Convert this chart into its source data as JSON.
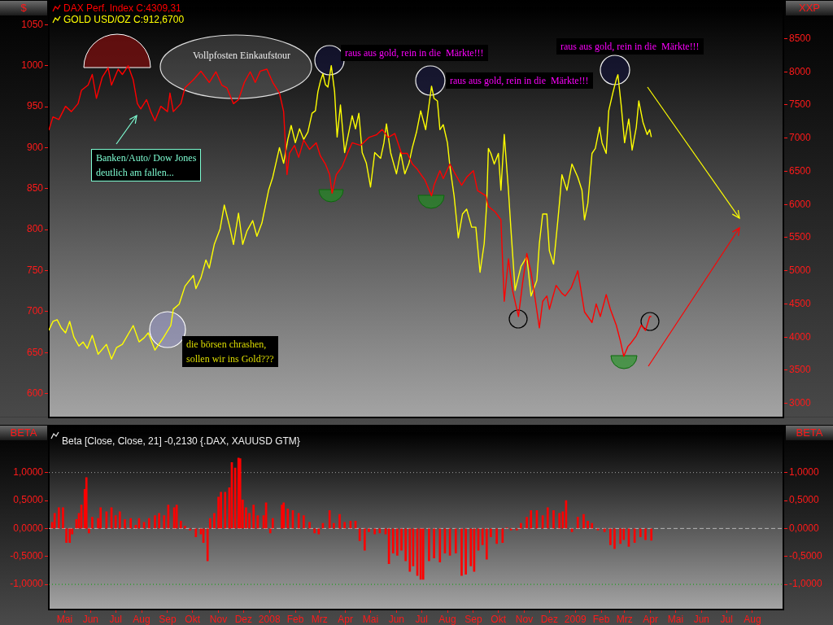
{
  "chart_data": [
    {
      "type": "line",
      "ylabel": "$",
      "y2label": "XXP",
      "legend": "top left",
      "tick_labels": "y",
      "xlim": [
        "2007-04-12",
        "2009-09-07"
      ],
      "ylim": [
        571,
        1071
      ],
      "yticks": [
        600,
        650,
        700,
        750,
        800,
        850,
        900,
        950,
        1000,
        1050
      ],
      "y2lim": [
        2790,
        8970
      ],
      "y2ticks": [
        3000,
        3500,
        4000,
        4500,
        5000,
        5500,
        6000,
        6500,
        7000,
        7500,
        8000,
        8500
      ],
      "series": [
        {
          "name": "DAX Perf. Index C:4309,31",
          "color": "#ff0000",
          "axis": "y2",
          "x": [
            "2007-04-12",
            "2007-04-17",
            "2007-04-24",
            "2007-05-02",
            "2007-05-09",
            "2007-05-17",
            "2007-05-21",
            "2007-05-29",
            "2007-06-03",
            "2007-06-08",
            "2007-06-15",
            "2007-06-22",
            "2007-06-26",
            "2007-07-04",
            "2007-07-09",
            "2007-07-16",
            "2007-07-22",
            "2007-07-27",
            "2007-07-31",
            "2007-08-07",
            "2007-08-12",
            "2007-08-17",
            "2007-08-24",
            "2007-09-01",
            "2007-09-04",
            "2007-09-08",
            "2007-09-17",
            "2007-09-22",
            "2007-10-02",
            "2007-10-11",
            "2007-10-21",
            "2007-10-29",
            "2007-11-05",
            "2007-11-11",
            "2007-11-19",
            "2007-11-25",
            "2007-12-02",
            "2007-12-09",
            "2007-12-15",
            "2007-12-21",
            "2007-12-29",
            "2008-01-05",
            "2008-01-13",
            "2008-01-18",
            "2008-01-22",
            "2008-01-25",
            "2008-01-31",
            "2008-02-05",
            "2008-02-11",
            "2008-02-18",
            "2008-02-26",
            "2008-03-02",
            "2008-03-08",
            "2008-03-13",
            "2008-03-16",
            "2008-03-21",
            "2008-03-28",
            "2008-04-04",
            "2008-04-09",
            "2008-04-19",
            "2008-04-29",
            "2008-05-08",
            "2008-05-15",
            "2008-05-22",
            "2008-05-30",
            "2008-06-07",
            "2008-06-14",
            "2008-06-20",
            "2008-06-26",
            "2008-07-05",
            "2008-07-13",
            "2008-07-16",
            "2008-07-23",
            "2008-07-27",
            "2008-08-04",
            "2008-08-09",
            "2008-08-18",
            "2008-08-24",
            "2008-09-01",
            "2008-09-06",
            "2008-09-16",
            "2008-09-19",
            "2008-09-27",
            "2008-10-04",
            "2008-10-08",
            "2008-10-13",
            "2008-10-18",
            "2008-10-25",
            "2008-10-30",
            "2008-11-04",
            "2008-11-09",
            "2008-11-13",
            "2008-11-19",
            "2008-11-23",
            "2008-11-28",
            "2008-12-01",
            "2008-12-09",
            "2008-12-16",
            "2008-12-20",
            "2008-12-27",
            "2009-01-04",
            "2009-01-12",
            "2009-01-21",
            "2009-01-26",
            "2009-01-31",
            "2009-02-07",
            "2009-02-12",
            "2009-02-19",
            "2009-02-24",
            "2009-02-28",
            "2009-03-05",
            "2009-03-08",
            "2009-03-15",
            "2009-03-21",
            "2009-03-26",
            "2009-03-31",
            "2009-04-02"
          ],
          "values": [
            7120,
            7320,
            7280,
            7480,
            7400,
            7520,
            7720,
            7800,
            7960,
            7600,
            7920,
            8060,
            7800,
            8040,
            7960,
            8090,
            7880,
            7520,
            7440,
            7580,
            7400,
            7260,
            7480,
            7400,
            7680,
            7400,
            7520,
            7760,
            7880,
            8010,
            7840,
            8000,
            7800,
            7760,
            7520,
            7580,
            7840,
            8000,
            7840,
            8010,
            8040,
            7840,
            7680,
            7400,
            6450,
            6770,
            6890,
            6710,
            6970,
            6830,
            6930,
            6730,
            6610,
            6450,
            6170,
            6450,
            6570,
            6790,
            6930,
            6890,
            7010,
            7050,
            7130,
            7010,
            7070,
            6770,
            6770,
            6610,
            6530,
            6370,
            6130,
            6290,
            6510,
            6390,
            6610,
            6490,
            6290,
            6410,
            6510,
            6210,
            6130,
            5970,
            5890,
            5770,
            4540,
            5180,
            4700,
            4310,
            4820,
            5260,
            4980,
            4660,
            4140,
            4540,
            4620,
            4420,
            4780,
            4660,
            4620,
            4740,
            5000,
            4380,
            4220,
            4500,
            4310,
            4640,
            4420,
            4180,
            3940,
            3710,
            3860,
            3900,
            4020,
            4180,
            4100,
            4310,
            4310
          ]
        },
        {
          "name": "GOLD USD/OZ C:912,6700",
          "color": "#ffff00",
          "x": [
            "2007-04-12",
            "2007-04-17",
            "2007-04-22",
            "2007-04-27",
            "2007-05-02",
            "2007-05-07",
            "2007-05-12",
            "2007-05-18",
            "2007-05-23",
            "2007-05-28",
            "2007-06-03",
            "2007-06-10",
            "2007-06-20",
            "2007-06-26",
            "2007-07-02",
            "2007-07-09",
            "2007-07-22",
            "2007-07-29",
            "2007-08-04",
            "2007-08-09",
            "2007-08-17",
            "2007-08-27",
            "2007-09-05",
            "2007-09-08",
            "2007-09-15",
            "2007-09-22",
            "2007-10-02",
            "2007-10-05",
            "2007-10-11",
            "2007-10-17",
            "2007-10-21",
            "2007-10-27",
            "2007-11-03",
            "2007-11-08",
            "2007-11-15",
            "2007-11-19",
            "2007-11-25",
            "2007-11-30",
            "2007-12-05",
            "2007-12-12",
            "2007-12-17",
            "2007-12-23",
            "2007-12-31",
            "2008-01-05",
            "2008-01-13",
            "2008-01-18",
            "2008-01-23",
            "2008-01-27",
            "2008-02-01",
            "2008-02-06",
            "2008-02-11",
            "2008-02-16",
            "2008-02-21",
            "2008-02-25",
            "2008-02-28",
            "2008-03-02",
            "2008-03-05",
            "2008-03-08",
            "2008-03-11",
            "2008-03-15",
            "2008-03-19",
            "2008-03-22",
            "2008-03-26",
            "2008-03-31",
            "2008-04-05",
            "2008-04-09",
            "2008-04-13",
            "2008-04-17",
            "2008-04-21",
            "2008-04-26",
            "2008-05-01",
            "2008-05-06",
            "2008-05-13",
            "2008-05-17",
            "2008-05-20",
            "2008-05-25",
            "2008-06-01",
            "2008-06-06",
            "2008-06-11",
            "2008-06-16",
            "2008-06-20",
            "2008-06-25",
            "2008-06-30",
            "2008-07-06",
            "2008-07-13",
            "2008-07-16",
            "2008-07-20",
            "2008-07-23",
            "2008-07-27",
            "2008-08-01",
            "2008-08-04",
            "2008-08-09",
            "2008-08-14",
            "2008-08-19",
            "2008-08-24",
            "2008-08-30",
            "2008-09-04",
            "2008-09-09",
            "2008-09-14",
            "2008-09-17",
            "2008-09-19",
            "2008-09-22",
            "2008-09-26",
            "2008-10-01",
            "2008-10-04",
            "2008-10-08",
            "2008-10-13",
            "2008-10-16",
            "2008-10-21",
            "2008-10-28",
            "2008-11-04",
            "2008-11-09",
            "2008-11-16",
            "2008-11-19",
            "2008-11-23",
            "2008-11-28",
            "2008-12-01",
            "2008-12-06",
            "2008-12-11",
            "2008-12-13",
            "2008-12-16",
            "2008-12-22",
            "2008-12-28",
            "2009-01-04",
            "2009-01-09",
            "2009-01-12",
            "2009-01-16",
            "2009-01-21",
            "2009-01-25",
            "2009-01-30",
            "2009-02-02",
            "2009-02-07",
            "2009-02-10",
            "2009-02-15",
            "2009-02-19",
            "2009-02-21",
            "2009-02-25",
            "2009-03-01",
            "2009-03-06",
            "2009-03-10",
            "2009-03-15",
            "2009-03-18",
            "2009-03-23",
            "2009-03-28",
            "2009-03-31",
            "2009-04-02"
          ],
          "values": [
            677,
            688,
            690,
            680,
            674,
            688,
            669,
            658,
            663,
            655,
            671,
            648,
            660,
            642,
            656,
            660,
            683,
            663,
            668,
            674,
            653,
            668,
            683,
            703,
            709,
            731,
            744,
            728,
            741,
            763,
            753,
            782,
            801,
            830,
            801,
            782,
            820,
            782,
            798,
            811,
            792,
            808,
            848,
            864,
            900,
            881,
            910,
            927,
            906,
            923,
            910,
            919,
            942,
            945,
            968,
            981,
            990,
            977,
            974,
            1000,
            968,
            913,
            952,
            894,
            919,
            939,
            923,
            942,
            894,
            881,
            852,
            894,
            887,
            906,
            929,
            894,
            868,
            894,
            868,
            881,
            900,
            919,
            945,
            922,
            975,
            960,
            957,
            922,
            928,
            906,
            877,
            841,
            790,
            819,
            825,
            803,
            803,
            748,
            783,
            832,
            899,
            893,
            880,
            893,
            848,
            916,
            848,
            800,
            726,
            755,
            767,
            719,
            738,
            783,
            819,
            819,
            774,
            758,
            810,
            832,
            867,
            848,
            880,
            864,
            848,
            812,
            832,
            893,
            899,
            925,
            906,
            893,
            945,
            967,
            983,
            989,
            951,
            906,
            935,
            897,
            925,
            957,
            931,
            916,
            922,
            913
          ]
        }
      ],
      "annotations": [
        "Vollpfosten Einkaufstour",
        "raus aus gold, rein in die  Märkte!!!",
        "raus aus gold, rein in die  Märkte!!!",
        "raus aus gold, rein in die  Märkte!!!",
        "Banken/Auto/ Dow Jones\ndeutlich am fallen...",
        "die börsen chrashen,\nsollen wir ins Gold???"
      ]
    },
    {
      "type": "bar",
      "title": "Beta [Close, Close, 21] -0,2130 {.DAX, XAUUSD GTM}",
      "ylabel": "BETA",
      "y2label": "BETA",
      "color": "#ff0000",
      "xlim": [
        "2007-04-12",
        "2009-09-07"
      ],
      "xticks": [
        {
          "value": "2007-05",
          "label": "Mai"
        },
        {
          "value": "2007-06",
          "label": "Jun"
        },
        {
          "value": "2007-07",
          "label": "Jul"
        },
        {
          "value": "2007-08",
          "label": "Aug"
        },
        {
          "value": "2007-09",
          "label": "Sep"
        },
        {
          "value": "2007-10",
          "label": "Okt"
        },
        {
          "value": "2007-11",
          "label": "Nov"
        },
        {
          "value": "2007-12",
          "label": "Dez"
        },
        {
          "value": "2008-01",
          "label": "2008"
        },
        {
          "value": "2008-02",
          "label": "Feb"
        },
        {
          "value": "2008-03",
          "label": "Mrz"
        },
        {
          "value": "2008-04",
          "label": "Apr"
        },
        {
          "value": "2008-05",
          "label": "Mai"
        },
        {
          "value": "2008-06",
          "label": "Jun"
        },
        {
          "value": "2008-07",
          "label": "Jul"
        },
        {
          "value": "2008-08",
          "label": "Aug"
        },
        {
          "value": "2008-09",
          "label": "Sep"
        },
        {
          "value": "2008-10",
          "label": "Okt"
        },
        {
          "value": "2008-11",
          "label": "Nov"
        },
        {
          "value": "2008-12",
          "label": "Dez"
        },
        {
          "value": "2009-01",
          "label": "2009"
        },
        {
          "value": "2009-02",
          "label": "Feb"
        },
        {
          "value": "2009-03",
          "label": "Mrz"
        },
        {
          "value": "2009-04",
          "label": "Apr"
        },
        {
          "value": "2009-05",
          "label": "Mai"
        },
        {
          "value": "2009-06",
          "label": "Jun"
        },
        {
          "value": "2009-07",
          "label": "Jul"
        },
        {
          "value": "2009-08",
          "label": "Aug"
        }
      ],
      "ylim": [
        -1.45,
        1.72
      ],
      "yticks": [
        {
          "value": -1,
          "label": "-1,0000"
        },
        {
          "value": -0.5,
          "label": "-0,5000"
        },
        {
          "value": 0,
          "label": "0,0000"
        },
        {
          "value": 0.5,
          "label": "0,5000"
        },
        {
          "value": 1,
          "label": "1,0000"
        }
      ],
      "y2lim": [
        -1.45,
        1.72
      ],
      "y2ticks": [
        {
          "value": -1,
          "label": "-1,0000"
        },
        {
          "value": -0.5,
          "label": "-0,5000"
        },
        {
          "value": 0,
          "label": "0,0000"
        },
        {
          "value": 0.5,
          "label": "0,5000"
        },
        {
          "value": 1,
          "label": "1,0000"
        }
      ],
      "ref_lines": [
        {
          "axis": "y",
          "value": 1,
          "color": "#a0a0a0",
          "line_style": "dotted"
        },
        {
          "axis": "y",
          "value": 0,
          "color": "#b4b4b4",
          "line_style": "dashed"
        },
        {
          "axis": "y",
          "value": -1,
          "color": "#00a000",
          "line_style": "dotted"
        }
      ],
      "x": [
        "2007-04-16",
        "2007-04-19",
        "2007-04-24",
        "2007-04-29",
        "2007-05-03",
        "2007-05-07",
        "2007-05-10",
        "2007-05-15",
        "2007-05-18",
        "2007-05-21",
        "2007-05-25",
        "2007-05-27",
        "2007-05-30",
        "2007-06-03",
        "2007-06-10",
        "2007-06-13",
        "2007-06-20",
        "2007-06-26",
        "2007-07-01",
        "2007-07-06",
        "2007-07-12",
        "2007-07-19",
        "2007-07-25",
        "2007-07-29",
        "2007-08-04",
        "2007-08-10",
        "2007-08-17",
        "2007-08-22",
        "2007-08-28",
        "2007-09-02",
        "2007-09-09",
        "2007-09-12",
        "2007-09-17",
        "2007-09-22",
        "2007-09-28",
        "2007-10-05",
        "2007-10-11",
        "2007-10-14",
        "2007-10-19",
        "2007-10-22",
        "2007-10-27",
        "2007-11-01",
        "2007-11-04",
        "2007-11-09",
        "2007-11-14",
        "2007-11-17",
        "2007-11-21",
        "2007-11-25",
        "2007-11-27",
        "2007-11-30",
        "2007-12-04",
        "2007-12-08",
        "2007-12-13",
        "2007-12-18",
        "2007-12-25",
        "2007-12-28",
        "2008-01-02",
        "2008-01-05",
        "2008-01-10",
        "2008-01-16",
        "2008-01-18",
        "2008-01-23",
        "2008-01-29",
        "2008-02-05",
        "2008-02-11",
        "2008-02-18",
        "2008-02-24",
        "2008-02-29",
        "2008-03-05",
        "2008-03-13",
        "2008-03-18",
        "2008-03-25",
        "2008-03-31",
        "2008-04-07",
        "2008-04-13",
        "2008-04-18",
        "2008-04-24",
        "2008-04-29",
        "2008-05-06",
        "2008-05-12",
        "2008-05-19",
        "2008-05-23",
        "2008-05-28",
        "2008-06-02",
        "2008-06-07",
        "2008-06-12",
        "2008-06-17",
        "2008-06-21",
        "2008-06-26",
        "2008-06-30",
        "2008-07-03",
        "2008-07-10",
        "2008-07-16",
        "2008-07-23",
        "2008-07-29",
        "2008-08-04",
        "2008-08-11",
        "2008-08-18",
        "2008-08-23",
        "2008-08-29",
        "2008-09-02",
        "2008-09-07",
        "2008-09-12",
        "2008-09-17",
        "2008-09-22",
        "2008-09-29",
        "2008-10-06",
        "2008-10-11",
        "2008-10-16",
        "2008-10-23",
        "2008-10-28",
        "2008-11-04",
        "2008-11-09",
        "2008-11-16",
        "2008-11-23",
        "2008-11-29",
        "2008-12-06",
        "2008-12-13",
        "2008-12-17",
        "2008-12-21",
        "2008-12-28",
        "2009-01-04",
        "2009-01-11",
        "2009-01-16",
        "2009-01-21",
        "2009-01-28",
        "2009-02-05",
        "2009-02-12",
        "2009-02-17",
        "2009-02-24",
        "2009-02-28",
        "2009-03-06",
        "2009-03-13",
        "2009-03-20",
        "2009-03-26",
        "2009-04-02"
      ],
      "values": [
        0.11,
        0.27,
        0.37,
        0.37,
        -0.25,
        -0.25,
        -0.1,
        0.16,
        0.27,
        0.42,
        0.7,
        0.91,
        -0.08,
        0.2,
        0.18,
        0.37,
        0.3,
        0.37,
        0.23,
        0.3,
        0.16,
        0.18,
        0.06,
        0.18,
        0.11,
        0.18,
        0.23,
        0.27,
        0.23,
        0.42,
        0.37,
        0.42,
        0.13,
        0.04,
        -0.03,
        -0.15,
        -0.1,
        -0.25,
        -0.58,
        0.18,
        0.27,
        0.56,
        0.65,
        0.65,
        0.73,
        1.18,
        1.08,
        1.26,
        1.25,
        0.51,
        0.37,
        0.27,
        0.42,
        0.23,
        0.23,
        0.46,
        -0.08,
        0.18,
        null,
        0.42,
        0.46,
        0.35,
        0.32,
        0.27,
        0.23,
        0.11,
        -0.08,
        -0.1,
        0.09,
        0.32,
        0.09,
        0.25,
        0.11,
        0.13,
        0.13,
        -0.22,
        -0.39,
        -0.06,
        -0.1,
        -0.08,
        -0.1,
        -0.63,
        -0.44,
        -0.48,
        -0.39,
        -0.58,
        -0.77,
        -0.67,
        -0.84,
        -0.91,
        -0.91,
        -0.58,
        -0.53,
        -0.6,
        -0.44,
        -0.48,
        -0.44,
        -0.84,
        -0.82,
        -0.67,
        -0.77,
        -0.39,
        -0.29,
        -0.55,
        -0.15,
        -0.27,
        -0.25,
        0.01,
        -0.03,
        -0.03,
        0.09,
        0.2,
        0.32,
        0.32,
        0.23,
        0.37,
        0.32,
        0.27,
        0.3,
        0.5,
        -0.06,
        0.2,
        0.25,
        0.13,
        0.09,
        -0.03,
        -0.06,
        -0.29,
        -0.36,
        -0.27,
        -0.2,
        -0.32,
        -0.25,
        -0.15,
        -0.2,
        -0.21
      ]
    }
  ]
}
